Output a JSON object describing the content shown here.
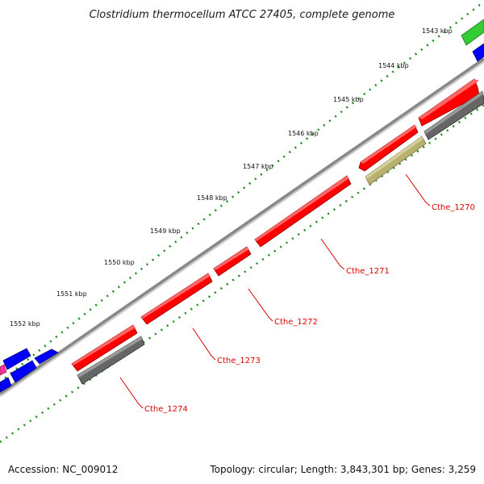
{
  "title": "Clostridium thermocellum ATCC 27405, complete genome",
  "footer": {
    "accession": "Accession: NC_009012",
    "summary": "Topology: circular; Length: 3,843,301 bp; Genes: 3,259"
  },
  "ticks": [
    "1543 kbp",
    "1544 kbp",
    "1545 kbp",
    "1546 kbp",
    "1547 kbp",
    "1548 kbp",
    "1549 kbp",
    "1550 kbp",
    "1551 kbp",
    "1552 kbp"
  ],
  "gene_labels": [
    "Cthe_1270",
    "Cthe_1271",
    "Cthe_1272",
    "Cthe_1273",
    "Cthe_1274"
  ],
  "colors": {
    "red_gene": "#ff0000",
    "gray_feature": "#666666",
    "olive_feature": "#b8b070",
    "blue_gene": "#0000ff",
    "green_gene": "#33cc33",
    "pink_gene": "#ff3399",
    "backbone": "#888888",
    "tick_dots": "#1a8a1a",
    "label_red": "#dd0000"
  }
}
